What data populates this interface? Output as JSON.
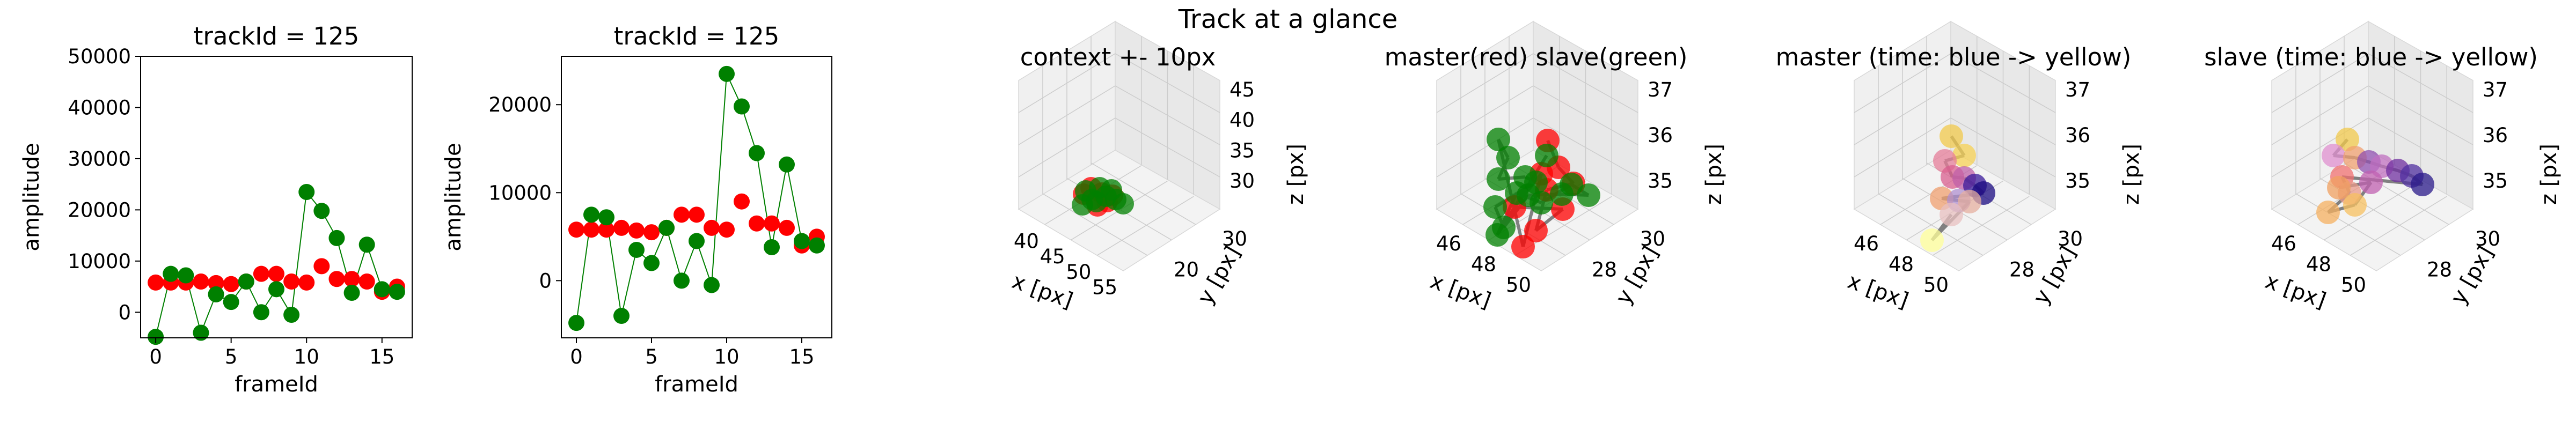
{
  "suptitle": "Track at a glance",
  "colors": {
    "master": "#ff0000",
    "slave": "#008000",
    "connector": "#808080",
    "pane": "#eeeeee",
    "grid": "#cccccc"
  },
  "chart_data": [
    {
      "type": "scatter",
      "title": "trackId = 125",
      "xlabel": "frameId",
      "ylabel": "amplitude",
      "xlim": [
        -1,
        17
      ],
      "ylim": [
        -5000,
        50000
      ],
      "xticks": [
        "0",
        "5",
        "10",
        "15"
      ],
      "yticks": [
        "0",
        "10000",
        "20000",
        "30000",
        "40000",
        "50000"
      ],
      "x": [
        0,
        1,
        2,
        3,
        4,
        5,
        6,
        7,
        8,
        9,
        10,
        11,
        12,
        13,
        14,
        15,
        16
      ],
      "series": [
        {
          "name": "",
          "color": "#ff0000",
          "line": false,
          "values": [
            5800,
            5800,
            5800,
            6000,
            5700,
            5500,
            6000,
            7500,
            7500,
            6000,
            5800,
            9000,
            6500,
            6500,
            6000,
            4000,
            5000
          ]
        },
        {
          "name": "",
          "color": "#008000",
          "line": true,
          "values": [
            -4800,
            7500,
            7200,
            -4000,
            3500,
            2000,
            6000,
            0,
            4500,
            -500,
            23500,
            19800,
            14500,
            3800,
            13200,
            4500,
            4000
          ]
        }
      ]
    },
    {
      "type": "scatter",
      "title": "trackId = 125",
      "xlabel": "frameId",
      "ylabel": "amplitude",
      "xlim": [
        -1,
        17
      ],
      "ylim": [
        -6500,
        25500
      ],
      "xticks": [
        "0",
        "5",
        "10",
        "15"
      ],
      "yticks": [
        "0",
        "10000",
        "20000"
      ],
      "x": [
        0,
        1,
        2,
        3,
        4,
        5,
        6,
        7,
        8,
        9,
        10,
        11,
        12,
        13,
        14,
        15,
        16
      ],
      "series": [
        {
          "name": "",
          "color": "#ff0000",
          "line": false,
          "values": [
            5800,
            5800,
            5800,
            6000,
            5700,
            5500,
            6000,
            7500,
            7500,
            6000,
            5800,
            9000,
            6500,
            6500,
            6000,
            4000,
            5000
          ]
        },
        {
          "name": "",
          "color": "#008000",
          "line": true,
          "values": [
            -4800,
            7500,
            7200,
            -4000,
            3500,
            2000,
            6000,
            0,
            4500,
            -500,
            23500,
            19800,
            14500,
            3800,
            13200,
            4500,
            4000
          ]
        }
      ]
    },
    {
      "type": "scatter3d",
      "title": "context +- 10px",
      "xlabel": "x [px]",
      "ylabel": "y [px]",
      "zlabel": "z [px]",
      "xticks": [
        "40",
        "45",
        "50",
        "55"
      ],
      "yticks": [
        "20",
        "30"
      ],
      "zticks": [
        "30",
        "35",
        "40",
        "45"
      ],
      "points": [
        {
          "c": "#ff0000",
          "s": [
            36,
            -28
          ]
        },
        {
          "c": "#ff0000",
          "s": [
            62,
            -6
          ]
        },
        {
          "c": "#ff0000",
          "s": [
            80,
            -14
          ]
        },
        {
          "c": "#ff0000",
          "s": [
            50,
            -40
          ]
        },
        {
          "c": "#ff0000",
          "s": [
            70,
            -30
          ]
        },
        {
          "c": "#ff0000",
          "s": [
            90,
            -26
          ]
        },
        {
          "c": "#008000",
          "s": [
            34,
            -8
          ]
        },
        {
          "c": "#008000",
          "s": [
            52,
            -18
          ]
        },
        {
          "c": "#008000",
          "s": [
            78,
            -24
          ]
        },
        {
          "c": "#008000",
          "s": [
            96,
            -18
          ]
        },
        {
          "c": "#008000",
          "s": [
            110,
            -10
          ]
        },
        {
          "c": "#008000",
          "s": [
            40,
            -34
          ]
        },
        {
          "c": "#008000",
          "s": [
            66,
            -40
          ]
        },
        {
          "c": "#008000",
          "s": [
            88,
            -36
          ]
        },
        {
          "c": "#008000",
          "s": [
            60,
            -14
          ]
        }
      ]
    },
    {
      "type": "scatter3d",
      "title": "master(red) slave(green)",
      "xlabel": "x [px]",
      "ylabel": "y [px]",
      "zlabel": "z [px]",
      "xticks": [
        "46",
        "48",
        "50"
      ],
      "yticks": [
        "28",
        "30"
      ],
      "zticks": [
        "35",
        "36",
        "37"
      ],
      "points": [
        {
          "c": "#ff0000",
          "s": [
            122,
            -128
          ]
        },
        {
          "c": "#ff0000",
          "s": [
            142,
            -78
          ]
        },
        {
          "c": "#ff0000",
          "s": [
            170,
            -48
          ]
        },
        {
          "c": "#ff0000",
          "s": [
            120,
            -36
          ]
        },
        {
          "c": "#ff0000",
          "s": [
            100,
            40
          ]
        },
        {
          "c": "#ff0000",
          "s": [
            150,
            0
          ]
        },
        {
          "c": "#ff0000",
          "s": [
            60,
            -4
          ]
        },
        {
          "c": "#ff0000",
          "s": [
            110,
            -66
          ]
        },
        {
          "c": "#ff0000",
          "s": [
            76,
            70
          ]
        },
        {
          "c": "#008000",
          "s": [
            30,
            -130
          ]
        },
        {
          "c": "#008000",
          "s": [
            48,
            -96
          ]
        },
        {
          "c": "#008000",
          "s": [
            30,
            -56
          ]
        },
        {
          "c": "#008000",
          "s": [
            80,
            -60
          ]
        },
        {
          "c": "#008000",
          "s": [
            100,
            -50
          ]
        },
        {
          "c": "#008000",
          "s": [
            24,
            -4
          ]
        },
        {
          "c": "#008000",
          "s": [
            40,
            34
          ]
        },
        {
          "c": "#008000",
          "s": [
            86,
            -26
          ]
        },
        {
          "c": "#008000",
          "s": [
            148,
            -28
          ]
        },
        {
          "c": "#008000",
          "s": [
            198,
            -26
          ]
        },
        {
          "c": "#008000",
          "s": [
            166,
            -46
          ]
        },
        {
          "c": "#008000",
          "s": [
            110,
            -12
          ]
        },
        {
          "c": "#008000",
          "s": [
            64,
            -30
          ]
        },
        {
          "c": "#008000",
          "s": [
            28,
            48
          ]
        },
        {
          "c": "#008000",
          "s": [
            120,
            -100
          ]
        }
      ]
    },
    {
      "type": "scatter3d",
      "title": "master (time: blue -> yellow)",
      "xlabel": "x [px]",
      "ylabel": "y [px]",
      "zlabel": "z [px]",
      "xticks": [
        "46",
        "48",
        "50"
      ],
      "yticks": [
        "28",
        "30"
      ],
      "zticks": [
        "35",
        "36",
        "37"
      ],
      "points": [
        {
          "c": "#f2c94c",
          "s": [
            96,
            -136
          ]
        },
        {
          "c": "#f7d154",
          "s": [
            120,
            -100
          ]
        },
        {
          "c": "#e67e9a",
          "s": [
            84,
            -90
          ]
        },
        {
          "c": "#d95f8f",
          "s": [
            98,
            -60
          ]
        },
        {
          "c": "#c060a8",
          "s": [
            120,
            -58
          ]
        },
        {
          "c": "#3a1a9a",
          "s": [
            140,
            -44
          ]
        },
        {
          "c": "#1a0a80",
          "s": [
            156,
            -30
          ]
        },
        {
          "c": "#f0a070",
          "s": [
            78,
            -20
          ]
        },
        {
          "c": "#b090d0",
          "s": [
            110,
            -16
          ]
        },
        {
          "c": "#e5b0a0",
          "s": [
            130,
            -14
          ]
        },
        {
          "c": "#ffff99",
          "s": [
            60,
            58
          ]
        },
        {
          "c": "#e8c0c0",
          "s": [
            96,
            10
          ]
        }
      ]
    },
    {
      "type": "scatter3d",
      "title": "slave (time: blue -> yellow)",
      "xlabel": "x [px]",
      "ylabel": "y [px]",
      "zlabel": "z [px]",
      "xticks": [
        "46",
        "48",
        "50"
      ],
      "yticks": [
        "28",
        "30"
      ],
      "zticks": [
        "35",
        "36",
        "37"
      ],
      "points": [
        {
          "c": "#f2c94c",
          "s": [
            56,
            -130
          ]
        },
        {
          "c": "#e090d0",
          "s": [
            30,
            -100
          ]
        },
        {
          "c": "#f0a070",
          "s": [
            70,
            -96
          ]
        },
        {
          "c": "#9050b0",
          "s": [
            96,
            -88
          ]
        },
        {
          "c": "#c070c0",
          "s": [
            120,
            -80
          ]
        },
        {
          "c": "#7030a0",
          "s": [
            150,
            -72
          ]
        },
        {
          "c": "#5030a0",
          "s": [
            176,
            -62
          ]
        },
        {
          "c": "#2a1a8a",
          "s": [
            196,
            -46
          ]
        },
        {
          "c": "#f07070",
          "s": [
            46,
            -60
          ]
        },
        {
          "c": "#e99a8a",
          "s": [
            60,
            -30
          ]
        },
        {
          "c": "#f6b060",
          "s": [
            20,
            6
          ]
        },
        {
          "c": "#f7c060",
          "s": [
            70,
            -8
          ]
        },
        {
          "c": "#c060b0",
          "s": [
            100,
            -50
          ]
        },
        {
          "c": "#f0a060",
          "s": [
            40,
            -40
          ]
        }
      ]
    }
  ]
}
